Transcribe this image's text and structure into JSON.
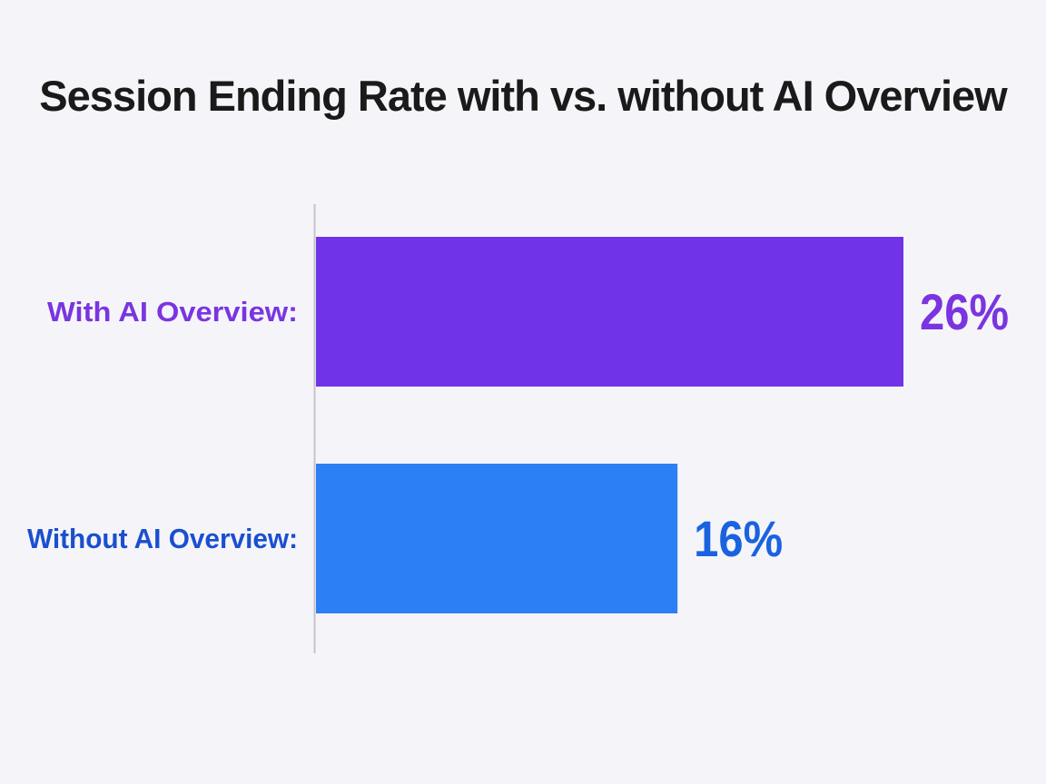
{
  "chart_data": {
    "type": "bar",
    "orientation": "horizontal",
    "title": "Session Ending Rate with vs. without AI Overview",
    "categories": [
      "With AI Overview:",
      "Without AI Overview:"
    ],
    "values": [
      26,
      16
    ],
    "value_labels": [
      "26%",
      "16%"
    ],
    "colors": [
      "#7033e8",
      "#2d7ff5"
    ],
    "label_colors": [
      "#7a35e0",
      "#1a4fcf"
    ],
    "value_label_colors": [
      "#7a35e0",
      "#1a63e0"
    ],
    "xlim": [
      0,
      26
    ],
    "grid": false,
    "legend": "none"
  }
}
